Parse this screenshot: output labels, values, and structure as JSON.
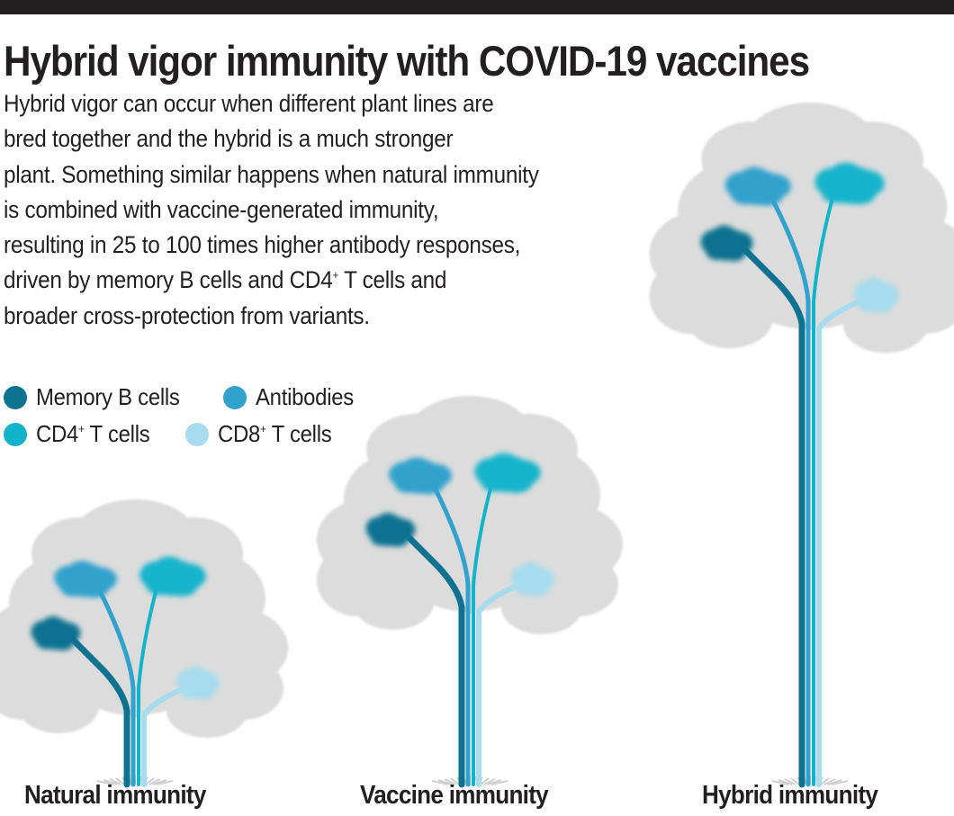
{
  "title": "Hybrid vigor immunity with COVID-19 vaccines",
  "intro_lines": [
    "Hybrid vigor can occur when different plant lines are",
    "bred together and the hybrid is a much stronger",
    "plant. Something similar happens when natural immunity",
    "is combined with vaccine-generated immunity,",
    "resulting in 25 to 100 times higher antibody responses,",
    "driven by memory B cells and CD4",
    "broader cross-protection from variants."
  ],
  "intro_line6_sup": "+",
  "intro_line6_tail": " T cells and",
  "legend": [
    {
      "label": "Memory B cells",
      "sup": "",
      "suffix": "",
      "color": "#0e7291"
    },
    {
      "label": "Antibodies",
      "sup": "",
      "suffix": "",
      "color": "#31a2cd"
    },
    {
      "label": "CD4",
      "sup": "+",
      "suffix": " T cells",
      "color": "#12b4cc"
    },
    {
      "label": "CD8",
      "sup": "+",
      "suffix": " T cells",
      "color": "#a6dced"
    }
  ],
  "trees": [
    {
      "label": "Natural immunity"
    },
    {
      "label": "Vaccine immunity"
    },
    {
      "label": "Hybrid immunity"
    }
  ],
  "colors": {
    "foliage": "#dcdcdc",
    "memory_b": "#0e7291",
    "antibodies": "#31a2cd",
    "cd4": "#12b4cc",
    "cd8": "#a6dced"
  }
}
